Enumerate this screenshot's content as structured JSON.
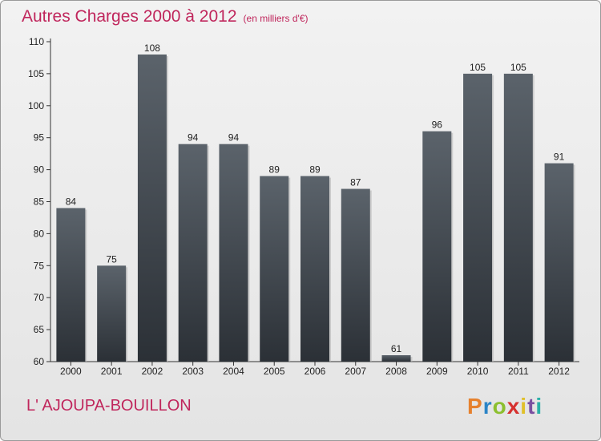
{
  "header": {
    "title": "Autres Charges 2000 à 2012",
    "subtitle": "(en milliers d'€)"
  },
  "footer": {
    "commune": "L' AJOUPA-BOUILLON",
    "logo_letters": [
      "P",
      "r",
      "o",
      "x",
      "i",
      "t",
      "i"
    ],
    "logo_colors": [
      "#e6812e",
      "#2a84c6",
      "#8cbf2f",
      "#d6312f",
      "#e0c02a",
      "#7a4fa0",
      "#2bb0a8"
    ]
  },
  "chart_data": {
    "type": "bar",
    "categories": [
      "2000",
      "2001",
      "2002",
      "2003",
      "2004",
      "2005",
      "2006",
      "2007",
      "2008",
      "2009",
      "2010",
      "2011",
      "2012"
    ],
    "values": [
      84,
      75,
      108,
      94,
      94,
      89,
      89,
      87,
      61,
      96,
      105,
      105,
      91
    ],
    "ylim": [
      60,
      110
    ],
    "yticks": [
      60,
      65,
      70,
      75,
      80,
      85,
      90,
      95,
      100,
      105,
      110
    ],
    "grid": false,
    "colors": {
      "bar_top": "#5b636b",
      "bar_bottom": "#2b3036",
      "title": "#c0265c"
    }
  }
}
